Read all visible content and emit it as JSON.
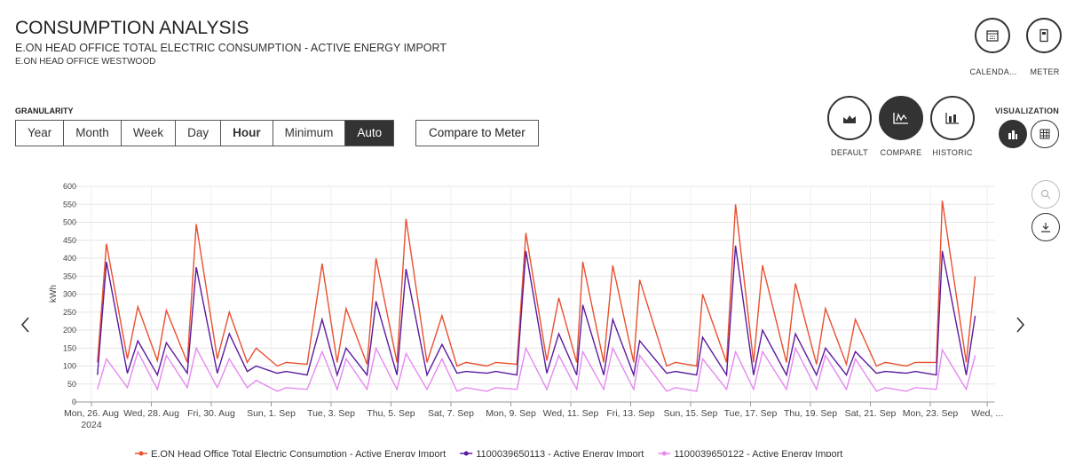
{
  "header": {
    "title": "CONSUMPTION ANALYSIS",
    "subtitle": "E.ON HEAD OFFICE TOTAL ELECTRIC CONSUMPTION - ACTIVE ENERGY IMPORT",
    "location": "E.ON HEAD OFFICE WESTWOOD"
  },
  "toolbar": {
    "calendar": "CALENDA...",
    "meter": "METER"
  },
  "granularity": {
    "label": "GRANULARITY",
    "options": [
      "Year",
      "Month",
      "Week",
      "Day",
      "Hour",
      "Minimum",
      "Auto"
    ],
    "compare": "Compare to Meter"
  },
  "views": [
    "DEFAULT",
    "COMPARE",
    "HISTORIC"
  ],
  "visualization": "VISUALIZATION",
  "chart_data": {
    "type": "line",
    "y_label": "kWh",
    "ylim": [
      0,
      600
    ],
    "yticks": [
      0,
      50,
      100,
      150,
      200,
      250,
      300,
      350,
      400,
      450,
      500,
      550,
      600
    ],
    "xlim": [
      0,
      30
    ],
    "xticks": [
      {
        "value": 0,
        "label": "Mon, 26. Aug 2024"
      },
      {
        "value": 2,
        "label": "Wed, 28. Aug"
      },
      {
        "value": 4,
        "label": "Fri, 30. Aug"
      },
      {
        "value": 6,
        "label": "Sun, 1. Sep"
      },
      {
        "value": 8,
        "label": "Tue, 3. Sep"
      },
      {
        "value": 10,
        "label": "Thu, 5. Sep"
      },
      {
        "value": 12,
        "label": "Sat, 7. Sep"
      },
      {
        "value": 14,
        "label": "Mon, 9. Sep"
      },
      {
        "value": 16,
        "label": "Wed, 11. Sep"
      },
      {
        "value": 18,
        "label": "Fri, 13. Sep"
      },
      {
        "value": 20,
        "label": "Sun, 15. Sep"
      },
      {
        "value": 22,
        "label": "Tue, 17. Sep"
      },
      {
        "value": 24,
        "label": "Thu, 19. Sep"
      },
      {
        "value": 26,
        "label": "Sat, 21. Sep"
      },
      {
        "value": 28,
        "label": "Mon, 23. Sep"
      },
      {
        "value": 29.9,
        "label": "Wed, ..."
      }
    ],
    "grid": true,
    "x": [
      0.2,
      0.5,
      1.2,
      1.55,
      2.2,
      2.5,
      3.2,
      3.5,
      4.2,
      4.6,
      5.2,
      5.5,
      6.2,
      6.5,
      7.2,
      7.7,
      8.2,
      8.5,
      9.2,
      9.5,
      10.2,
      10.5,
      11.2,
      11.7,
      12.2,
      12.5,
      13.2,
      13.5,
      14.2,
      14.5,
      15.2,
      15.6,
      16.2,
      16.4,
      17.1,
      17.4,
      18.1,
      18.3,
      19.2,
      19.5,
      20.2,
      20.4,
      21.2,
      21.5,
      22.1,
      22.4,
      23.2,
      23.5,
      24.2,
      24.5,
      25.2,
      25.5,
      26.2,
      26.5,
      27.2,
      27.5,
      28.2,
      28.4,
      29.2,
      29.5
    ],
    "series": [
      {
        "name": "E.ON Head Office Total Electric Consumption - Active Energy Import",
        "color": "#e8502f",
        "values": [
          110,
          440,
          120,
          265,
          115,
          255,
          110,
          495,
          120,
          250,
          110,
          150,
          100,
          110,
          105,
          385,
          110,
          260,
          105,
          400,
          110,
          510,
          110,
          240,
          100,
          110,
          100,
          110,
          105,
          470,
          115,
          290,
          110,
          390,
          110,
          380,
          110,
          340,
          100,
          110,
          100,
          300,
          110,
          550,
          110,
          380,
          110,
          330,
          105,
          260,
          105,
          230,
          100,
          110,
          100,
          110,
          110,
          560,
          110,
          350
        ]
      },
      {
        "name": "1100039650113 - Active Energy Import",
        "color": "#5b1a9e",
        "values": [
          75,
          390,
          80,
          170,
          75,
          165,
          80,
          375,
          80,
          190,
          85,
          100,
          80,
          85,
          75,
          230,
          75,
          150,
          75,
          280,
          75,
          370,
          75,
          160,
          80,
          85,
          80,
          85,
          75,
          420,
          80,
          190,
          75,
          270,
          75,
          230,
          75,
          170,
          80,
          85,
          75,
          180,
          75,
          435,
          75,
          200,
          75,
          190,
          75,
          150,
          75,
          140,
          80,
          85,
          80,
          85,
          75,
          420,
          75,
          240
        ]
      },
      {
        "name": "1100039650122 - Active Energy Import",
        "color": "#e589f0",
        "values": [
          35,
          120,
          40,
          140,
          35,
          130,
          40,
          150,
          40,
          120,
          40,
          60,
          30,
          40,
          35,
          140,
          35,
          120,
          35,
          150,
          35,
          135,
          35,
          120,
          30,
          40,
          30,
          40,
          35,
          150,
          35,
          130,
          35,
          140,
          35,
          150,
          35,
          130,
          30,
          40,
          30,
          120,
          35,
          140,
          35,
          140,
          35,
          150,
          35,
          130,
          35,
          120,
          30,
          40,
          30,
          40,
          35,
          145,
          35,
          130
        ]
      }
    ]
  }
}
